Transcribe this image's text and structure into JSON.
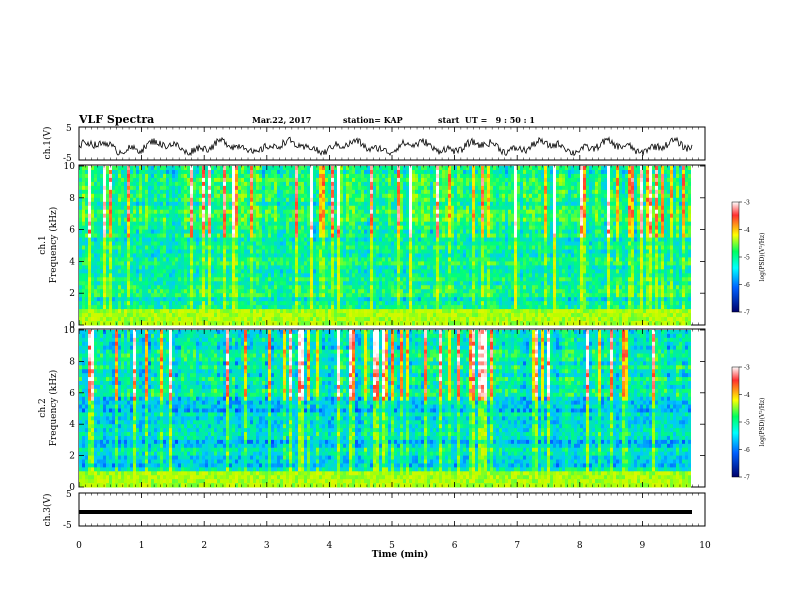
{
  "header": {
    "title": "VLF Spectra",
    "date": "Mar.22, 2017",
    "station": "station= KAP",
    "start": "start  UT =   9 : 50 : 1"
  },
  "chart_data": [
    {
      "type": "line",
      "panel": "ch1-waveform",
      "ylabel": "ch.1(V)",
      "ylim": [
        -5,
        5
      ],
      "ytick_labels": [
        "5",
        "-5"
      ],
      "xlim": [
        0,
        9.8
      ],
      "series": [
        {
          "values_description_note": "",
          "approx_mean": -1.0,
          "approx_amplitude": 3.0
        }
      ]
    },
    {
      "type": "heatmap",
      "panel": "ch1-spectrogram",
      "ylabel": "ch.1",
      "ylabel2": "Frequency (kHz)",
      "ylim": [
        0,
        10
      ],
      "ytick_labels": [
        "0",
        "2",
        "4",
        "6",
        "8",
        "10"
      ],
      "xlim": [
        0,
        9.8
      ],
      "colorbar": {
        "label": "log(PSD)(V²/Hz)",
        "range": [
          -7,
          -3
        ],
        "tick_labels": [
          "-3",
          "-4",
          "-5",
          "-6",
          "-7"
        ]
      }
    },
    {
      "type": "heatmap",
      "panel": "ch2-spectrogram",
      "ylabel": "ch.2",
      "ylabel2": "Frequency (kHz)",
      "ylim": [
        0,
        10
      ],
      "ytick_labels": [
        "0",
        "2",
        "4",
        "6",
        "8",
        "10"
      ],
      "xlim": [
        0,
        9.8
      ],
      "colorbar": {
        "label": "log(PSD)(V²/Hz)",
        "range": [
          -7,
          -3
        ],
        "tick_labels": [
          "-3",
          "-4",
          "-5",
          "-6",
          "-7"
        ]
      }
    },
    {
      "type": "line",
      "panel": "ch3-waveform",
      "ylabel": "ch.3(V)",
      "ylim": [
        -5,
        5
      ],
      "ytick_labels": [
        "5",
        "-5"
      ],
      "xlim": [
        0,
        9.8
      ],
      "series": [
        {
          "approx_value": -1.0
        }
      ]
    }
  ],
  "xaxis": {
    "label": "Time  (min)",
    "range": [
      0,
      10
    ],
    "tick_labels": [
      "0",
      "1",
      "2",
      "3",
      "4",
      "5",
      "6",
      "7",
      "8",
      "9",
      "10"
    ]
  },
  "colors": {
    "line": "#000000",
    "background": "#ffffff"
  }
}
